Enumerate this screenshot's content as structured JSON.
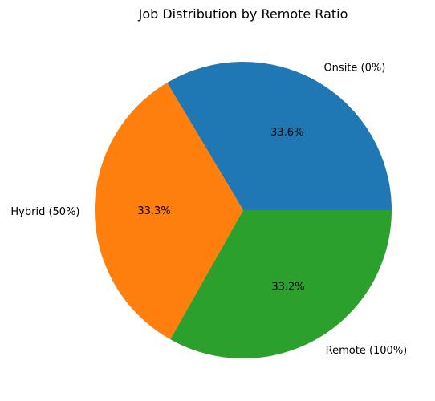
{
  "chart_data": {
    "type": "pie",
    "title": "Job Distribution by Remote Ratio",
    "labels": [
      "Onsite (0%)",
      "Hybrid (50%)",
      "Remote (100%)"
    ],
    "values": [
      33.6,
      33.3,
      33.2
    ],
    "percent_labels": [
      "33.6%",
      "33.3%",
      "33.2%"
    ],
    "colors": [
      "#1f77b4",
      "#ff7f0e",
      "#2ca02c"
    ],
    "start_angle": 0,
    "direction": "counterclockwise"
  }
}
